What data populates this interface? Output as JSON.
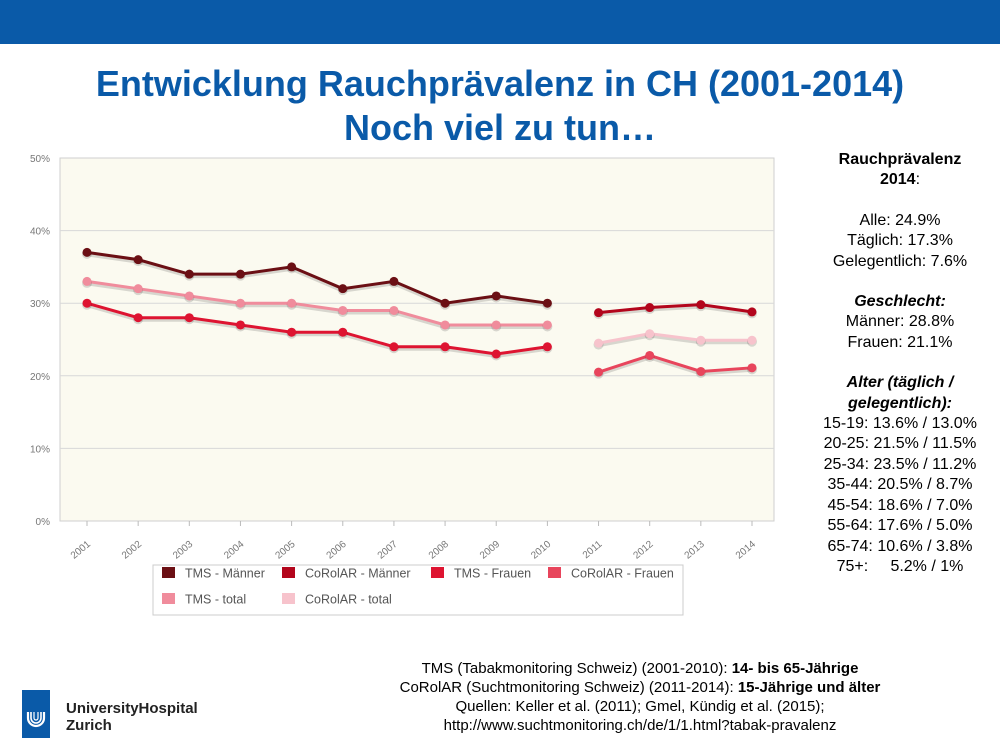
{
  "slide": {
    "title_line1": "Entwicklung Rauchprävalenz in CH (2001-2014)",
    "title_line2": "Noch viel zu tun…",
    "colors": {
      "accent": "#0a5aa8",
      "plot_bg": "#fbfaf0"
    }
  },
  "stats": {
    "heading1": "Rauchprävalenz",
    "heading2": "2014",
    "heading_suffix": ":",
    "alle": "Alle: 24.9%",
    "taeglich": "Täglich: 17.3%",
    "gelegentlich": "Gelegentlich: 7.6%",
    "geschlecht_title": "Geschlecht:",
    "maenner": "Männer: 28.8%",
    "frauen": "Frauen: 21.1%",
    "alter_title1": "Alter (täglich /",
    "alter_title2": "gelegentlich):",
    "age_rows": [
      "15-19: 13.6% / 13.0%",
      "20-25: 21.5% / 11.5%",
      "25-34: 23.5% / 11.2%",
      "35-44: 20.5% / 8.7%",
      "45-54: 18.6% / 7.0%",
      "55-64: 17.6% / 5.0%",
      "65-74: 10.6% / 3.8%",
      "75+:     5.2% / 1%"
    ]
  },
  "footer": {
    "line1_text": "TMS (Tabakmonitoring Schweiz) (2001-2010): ",
    "line1_bold": "14- bis 65-Jährige",
    "line2_text": "CoRolAR (Suchtmonitoring Schweiz) (2011-2014): ",
    "line2_bold": "15-Jährige und älter",
    "line3": "Quellen: Keller et al. (2011); Gmel, Kündig et al. (2015);",
    "line4": "http://www.suchtmonitoring.ch/de/1/1.html?tabak-pravalenz"
  },
  "brand": {
    "line1": "UniversityHospital",
    "line2": "Zurich"
  },
  "chart_data": {
    "type": "line",
    "categories": [
      "2001",
      "2002",
      "2003",
      "2004",
      "2005",
      "2006",
      "2007",
      "2008",
      "2009",
      "2010",
      "2011",
      "2012",
      "2013",
      "2014"
    ],
    "ylim": [
      0,
      50
    ],
    "yticks": [
      "0%",
      "10%",
      "20%",
      "30%",
      "40%",
      "50%"
    ],
    "grid": true,
    "legend_position": "bottom",
    "series": [
      {
        "name": "TMS - Männer",
        "color": "#6b0f14",
        "values": [
          37,
          36,
          34,
          34,
          35,
          32,
          33,
          30,
          31,
          30,
          null,
          null,
          null,
          null
        ]
      },
      {
        "name": "CoRolAR - Männer",
        "color": "#b3051c",
        "values": [
          null,
          null,
          null,
          null,
          null,
          null,
          null,
          null,
          null,
          null,
          28.7,
          29.4,
          29.8,
          28.8
        ]
      },
      {
        "name": "TMS - Frauen",
        "color": "#de1431",
        "values": [
          30,
          28,
          28,
          27,
          26,
          26,
          24,
          24,
          23,
          24,
          null,
          null,
          null,
          null
        ]
      },
      {
        "name": "CoRolAR - Frauen",
        "color": "#e8455c",
        "values": [
          null,
          null,
          null,
          null,
          null,
          null,
          null,
          null,
          null,
          null,
          20.5,
          22.8,
          20.6,
          21.1
        ]
      },
      {
        "name": "TMS - total",
        "color": "#f08c9c",
        "values": [
          33,
          32,
          31,
          30,
          30,
          29,
          29,
          27,
          27,
          27,
          null,
          null,
          null,
          null
        ]
      },
      {
        "name": "CoRolAR - total",
        "color": "#f7c3cc",
        "values": [
          null,
          null,
          null,
          null,
          null,
          null,
          null,
          null,
          null,
          null,
          24.5,
          25.8,
          24.9,
          24.9
        ]
      }
    ]
  }
}
